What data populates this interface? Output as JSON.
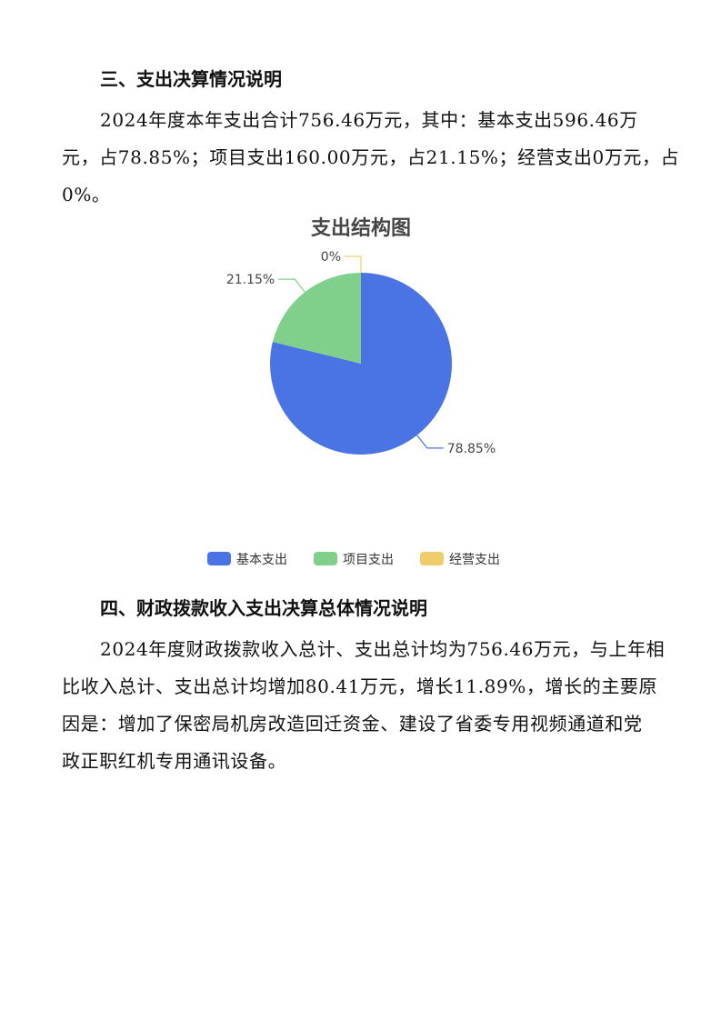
{
  "section3": {
    "heading": "三、支出决算情况说明",
    "lines": [
      "2024年度本年支出合计756.46万元，其中：基本支出596.46万",
      "元，占78.85%；项目支出160.00万元，占21.15%；经营支出0万元，占",
      "0%。"
    ]
  },
  "chart_data": {
    "type": "pie",
    "title": "支出结构图",
    "categories": [
      "基本支出",
      "项目支出",
      "经营支出"
    ],
    "values": [
      78.85,
      21.15,
      0
    ],
    "data_labels": [
      "78.85%",
      "21.15%",
      "0%"
    ],
    "colors": [
      "#4a73e3",
      "#80d08c",
      "#f0cd6b"
    ],
    "legend": "bottom",
    "start_angle": "top, clockwise"
  },
  "section4": {
    "heading": "四、财政拨款收入支出决算总体情况说明",
    "lines": [
      "2024年度财政拨款收入总计、支出总计均为756.46万元，与上年相",
      "比收入总计、支出总计均增加80.41万元，增长11.89%，增长的主要原",
      "因是：增加了保密局机房改造回迁资金、建设了省委专用视频通道和党",
      "政正职红机专用通讯设备。"
    ]
  }
}
